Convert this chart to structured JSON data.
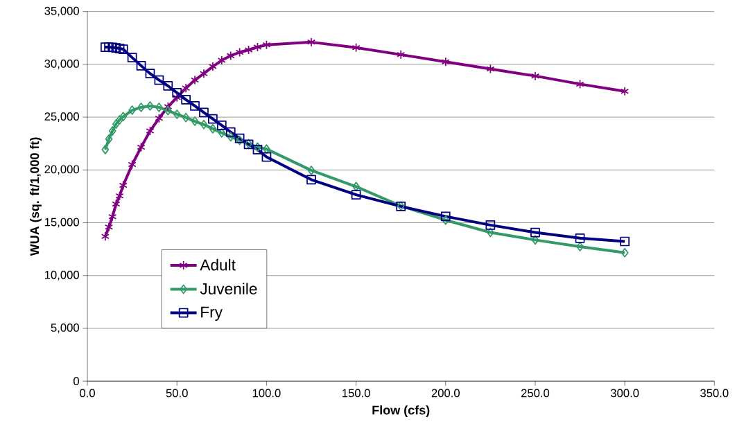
{
  "chart_data": {
    "type": "line",
    "xlabel": "Flow (cfs)",
    "ylabel": "WUA (sq. ft/1,000 ft)",
    "x": [
      10,
      12,
      14,
      16,
      18,
      20,
      25,
      30,
      35,
      40,
      45,
      50,
      55,
      60,
      65,
      70,
      75,
      80,
      85,
      90,
      95,
      100,
      125,
      150,
      175,
      200,
      225,
      250,
      275,
      300
    ],
    "series": [
      {
        "name": "Adult",
        "color": "#800080",
        "marker": "cross",
        "values": [
          13710,
          14590,
          15580,
          16780,
          17550,
          18540,
          20510,
          22160,
          23690,
          24890,
          25990,
          26860,
          27750,
          28510,
          29130,
          29790,
          30380,
          30820,
          31140,
          31370,
          31630,
          31850,
          32100,
          31580,
          30920,
          30240,
          29560,
          28900,
          28130,
          27450
        ]
      },
      {
        "name": "Juvenile",
        "color": "#339966",
        "marker": "diamond",
        "values": [
          21930,
          22920,
          23690,
          24350,
          24750,
          25050,
          25660,
          25930,
          26060,
          25930,
          25620,
          25270,
          24960,
          24610,
          24300,
          23900,
          23510,
          23140,
          22810,
          22480,
          22160,
          21980,
          19960,
          18420,
          16590,
          15250,
          14080,
          13370,
          12740,
          12170
        ]
      },
      {
        "name": "Fry",
        "color": "#000080",
        "marker": "square",
        "values": [
          31630,
          31630,
          31600,
          31560,
          31500,
          31430,
          30640,
          29870,
          29130,
          28510,
          27960,
          27310,
          26650,
          26060,
          25440,
          24830,
          24230,
          23580,
          22990,
          22420,
          21930,
          21230,
          19080,
          17650,
          16550,
          15600,
          14780,
          14080,
          13540,
          13230
        ]
      }
    ],
    "xlim": [
      0,
      350
    ],
    "ylim": [
      0,
      35000
    ],
    "xticks": [
      {
        "value": 0,
        "label": "0.0"
      },
      {
        "value": 50,
        "label": "50.0"
      },
      {
        "value": 100,
        "label": "100.0"
      },
      {
        "value": 150,
        "label": "150.0"
      },
      {
        "value": 200,
        "label": "200.0"
      },
      {
        "value": 250,
        "label": "250.0"
      },
      {
        "value": 300,
        "label": "300.0"
      },
      {
        "value": 350,
        "label": "350.0"
      }
    ],
    "yticks": [
      0,
      {
        "value": 5000,
        "label": "5,000"
      },
      {
        "value": 10000,
        "label": "10,000"
      },
      {
        "value": 15000,
        "label": "15,000"
      },
      {
        "value": 20000,
        "label": "20,000"
      },
      {
        "value": 25000,
        "label": "25,000"
      },
      {
        "value": 30000,
        "label": "30,000"
      },
      {
        "value": 35000,
        "label": "35,000"
      }
    ],
    "grid": "y",
    "legend": "bottom left",
    "line_style": "solid"
  }
}
